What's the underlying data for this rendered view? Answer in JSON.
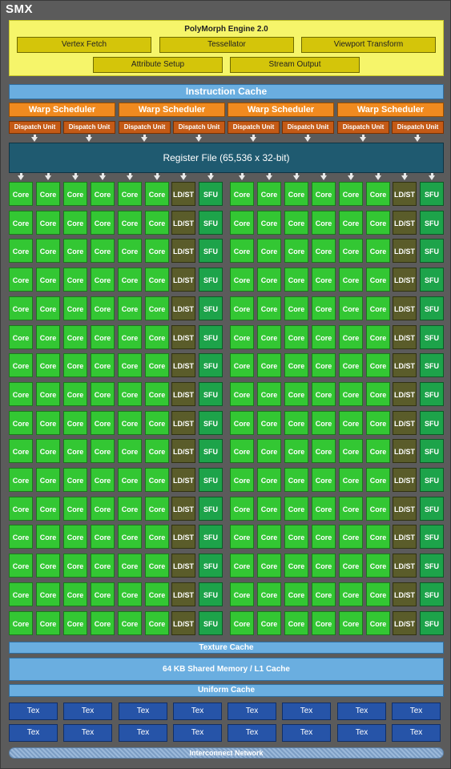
{
  "title": "SMX",
  "polymorph": {
    "title": "PolyMorph Engine 2.0",
    "units": [
      "Vertex Fetch",
      "Tessellator",
      "Viewport Transform",
      "Attribute Setup",
      "Stream Output"
    ]
  },
  "instruction_cache": "Instruction Cache",
  "warp_scheduler": "Warp Scheduler",
  "dispatch_unit": "Dispatch Unit",
  "register_file": "Register File (65,536 x 32-bit)",
  "cell_labels": {
    "core": "Core",
    "ldst": "LD/ST",
    "sfu": "SFU"
  },
  "row_pattern": [
    "core",
    "core",
    "core",
    "core",
    "core",
    "core",
    "ldst",
    "sfu",
    "core",
    "core",
    "core",
    "core",
    "core",
    "core",
    "ldst",
    "sfu"
  ],
  "row_count": 16,
  "texture_cache": "Texture Cache",
  "shared_memory": "64 KB Shared Memory / L1 Cache",
  "uniform_cache": "Uniform Cache",
  "tex_label": "Tex",
  "tex_count": 16,
  "interconnect": "Interconnect Network"
}
